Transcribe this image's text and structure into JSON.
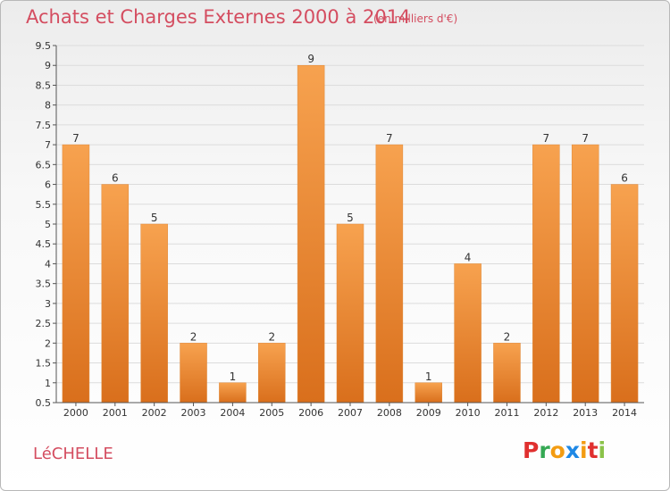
{
  "title": "Achats et Charges Externes 2000 à 2014",
  "unit": "(en milliers d'€)",
  "commune": "LéCHELLE",
  "logo": {
    "text": "Proxiti",
    "letters": [
      "P",
      "r",
      "o",
      "x",
      "i",
      "t",
      "i"
    ],
    "colors": [
      "#e0302f",
      "#34a853",
      "#f39c12",
      "#1e88e5",
      "#f39c12",
      "#e0302f",
      "#8bc34a"
    ]
  },
  "colors": {
    "bar": "#f0913a",
    "bar_dark": "#e27825",
    "title": "#d44d60",
    "axis": "#333333",
    "grid": "#d9d9d9"
  },
  "chart_data": {
    "type": "bar",
    "title": "Achats et Charges Externes 2000 à 2014",
    "subtitle": "(en milliers d'€)",
    "categories": [
      "2000",
      "2001",
      "2002",
      "2003",
      "2004",
      "2005",
      "2006",
      "2007",
      "2008",
      "2009",
      "2010",
      "2011",
      "2012",
      "2013",
      "2014"
    ],
    "values": [
      7,
      6,
      5,
      2,
      1,
      2,
      9,
      5,
      7,
      1,
      4,
      2,
      7,
      7,
      6
    ],
    "ylim": [
      0.5,
      9.5
    ],
    "yticks": [
      "0.5",
      "1",
      "1.5",
      "2",
      "2.5",
      "3",
      "3.5",
      "4",
      "4.5",
      "5",
      "5.5",
      "6",
      "6.5",
      "7",
      "7.5",
      "8",
      "8.5",
      "9",
      "9.5"
    ],
    "grid": true
  }
}
